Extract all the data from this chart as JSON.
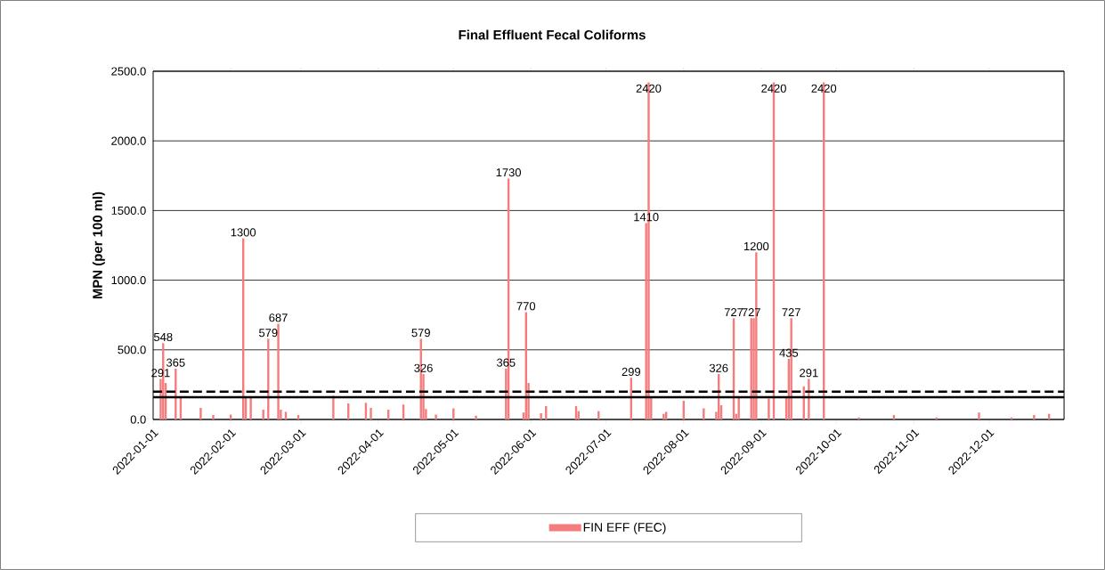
{
  "chart_data": {
    "type": "bar",
    "title": "Final Effluent Fecal Coliforms",
    "ylabel": "MPN (per 100 ml)",
    "x": [
      "2022-01-04",
      "2022-01-05",
      "2022-01-06",
      "2022-01-10",
      "2022-01-12",
      "2022-01-20",
      "2022-01-25",
      "2022-02-01",
      "2022-02-06",
      "2022-02-07",
      "2022-02-09",
      "2022-02-14",
      "2022-02-16",
      "2022-02-20",
      "2022-02-21",
      "2022-02-23",
      "2022-02-28",
      "2022-03-14",
      "2022-03-20",
      "2022-03-27",
      "2022-03-29",
      "2022-04-05",
      "2022-04-11",
      "2022-04-18",
      "2022-04-19",
      "2022-04-20",
      "2022-04-24",
      "2022-05-01",
      "2022-05-10",
      "2022-05-22",
      "2022-05-23",
      "2022-05-29",
      "2022-05-30",
      "2022-05-31",
      "2022-06-05",
      "2022-06-07",
      "2022-06-19",
      "2022-06-20",
      "2022-06-28",
      "2022-07-11",
      "2022-07-17",
      "2022-07-18",
      "2022-07-19",
      "2022-07-24",
      "2022-07-25",
      "2022-08-01",
      "2022-08-09",
      "2022-08-14",
      "2022-08-15",
      "2022-08-16",
      "2022-08-21",
      "2022-08-22",
      "2022-08-23",
      "2022-08-28",
      "2022-08-29",
      "2022-08-30",
      "2022-09-04",
      "2022-09-06",
      "2022-09-11",
      "2022-09-12",
      "2022-09-13",
      "2022-09-18",
      "2022-09-20",
      "2022-09-26",
      "2022-10-10",
      "2022-10-24",
      "2022-11-10",
      "2022-11-27",
      "2022-12-10",
      "2022-12-19",
      "2022-12-25"
    ],
    "series": [
      {
        "name": "FIN EFF (FEC)",
        "color": "#f47c7c",
        "values": [
          291,
          548,
          262,
          365,
          166,
          83,
          32,
          35,
          1300,
          166,
          166,
          70,
          579,
          687,
          70,
          55,
          32,
          170,
          115,
          120,
          83,
          70,
          107,
          579,
          326,
          75,
          35,
          80,
          27,
          365,
          1730,
          50,
          770,
          262,
          45,
          96,
          96,
          60,
          60,
          299,
          1410,
          2420,
          166,
          40,
          55,
          134,
          80,
          55,
          326,
          102,
          727,
          40,
          166,
          727,
          727,
          1200,
          150,
          2420,
          166,
          435,
          727,
          237,
          291,
          2420,
          15,
          32,
          15,
          50,
          15,
          32,
          40
        ],
        "value_labels": [
          "291",
          "548",
          null,
          "365",
          null,
          null,
          null,
          null,
          "1300",
          null,
          null,
          null,
          "579",
          "687",
          null,
          null,
          null,
          null,
          null,
          null,
          null,
          null,
          null,
          "579",
          "326",
          null,
          null,
          null,
          null,
          "365",
          "1730",
          null,
          "770",
          null,
          null,
          null,
          null,
          null,
          null,
          "299",
          "1410",
          "2420",
          null,
          null,
          null,
          null,
          null,
          null,
          "326",
          null,
          "727",
          null,
          null,
          "727",
          null,
          "1200",
          null,
          "2420",
          null,
          "435",
          "727",
          null,
          "291",
          "2420",
          null,
          null,
          null,
          null,
          null,
          null,
          null
        ]
      }
    ],
    "xlim": [
      "2022-01-01",
      "2022-12-31"
    ],
    "xticks": [
      "2022-01-01",
      "2022-02-01",
      "2022-03-01",
      "2022-04-01",
      "2022-05-01",
      "2022-06-01",
      "2022-07-01",
      "2022-08-01",
      "2022-09-01",
      "2022-10-01",
      "2022-11-01",
      "2022-12-01"
    ],
    "ylim": [
      0,
      2500
    ],
    "yticks": [
      {
        "value": 0,
        "label": "0.0"
      },
      {
        "value": 500,
        "label": "500.0"
      },
      {
        "value": 1000,
        "label": "1000.0"
      },
      {
        "value": 1500,
        "label": "1500.0"
      },
      {
        "value": 2000,
        "label": "2000.0"
      },
      {
        "value": 2500,
        "label": "2500.0"
      }
    ],
    "ref_lines": [
      {
        "axis": "y",
        "value": 200,
        "color": "#000000",
        "line_style": "dashed"
      },
      {
        "axis": "y",
        "value": 160,
        "color": "#000000",
        "line_style": "solid"
      }
    ],
    "grid": "y",
    "legend": "bottom"
  }
}
